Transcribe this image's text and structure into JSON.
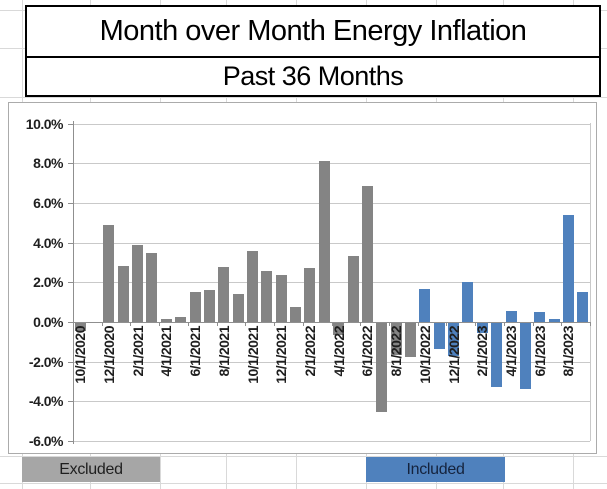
{
  "title": {
    "line1": "Month over Month Energy Inflation",
    "line2": "Past 36 Months"
  },
  "legend": {
    "excluded_label": "Excluded",
    "included_label": "Included"
  },
  "colors": {
    "excluded_bar": "#848484",
    "included_bar": "#4f81bd",
    "legend_excluded_bg": "#a6a6a6",
    "legend_included_bg": "#4f81bd",
    "gridline": "#c9c9c9",
    "axis": "#8f8f8f"
  },
  "chart_data": {
    "type": "bar",
    "title": "Month over Month Energy Inflation",
    "subtitle": "Past 36 Months",
    "xlabel": "",
    "ylabel": "",
    "ylim": [
      -6,
      10
    ],
    "grid": true,
    "legend_position": "bottom",
    "x_labels_every": 2,
    "ytick_percent": [
      10,
      8,
      6,
      4,
      2,
      0,
      -2,
      -4,
      -6
    ],
    "ytick_labels": [
      "10.0%",
      "8.0%",
      "6.0%",
      "4.0%",
      "2.0%",
      "0.0%",
      "-2.0%",
      "-4.0%",
      "-6.0%"
    ],
    "series": [
      {
        "name": "Excluded",
        "color": "#848484"
      },
      {
        "name": "Included",
        "color": "#4f81bd"
      }
    ],
    "points": [
      {
        "date": "10/1/2020",
        "value": -0.4,
        "series": "Excluded"
      },
      {
        "date": "11/1/2020",
        "value": 0.0,
        "series": "Excluded"
      },
      {
        "date": "12/1/2020",
        "value": 4.9,
        "series": "Excluded"
      },
      {
        "date": "1/1/2021",
        "value": 2.8,
        "series": "Excluded"
      },
      {
        "date": "2/1/2021",
        "value": 3.9,
        "series": "Excluded"
      },
      {
        "date": "3/1/2021",
        "value": 3.5,
        "series": "Excluded"
      },
      {
        "date": "4/1/2021",
        "value": 0.15,
        "series": "Excluded"
      },
      {
        "date": "5/1/2021",
        "value": 0.25,
        "series": "Excluded"
      },
      {
        "date": "6/1/2021",
        "value": 1.5,
        "series": "Excluded"
      },
      {
        "date": "7/1/2021",
        "value": 1.6,
        "series": "Excluded"
      },
      {
        "date": "8/1/2021",
        "value": 2.75,
        "series": "Excluded"
      },
      {
        "date": "9/1/2021",
        "value": 1.4,
        "series": "Excluded"
      },
      {
        "date": "10/1/2021",
        "value": 3.6,
        "series": "Excluded"
      },
      {
        "date": "11/1/2021",
        "value": 2.55,
        "series": "Excluded"
      },
      {
        "date": "12/1/2021",
        "value": 2.35,
        "series": "Excluded"
      },
      {
        "date": "1/1/2022",
        "value": 0.75,
        "series": "Excluded"
      },
      {
        "date": "2/1/2022",
        "value": 2.7,
        "series": "Excluded"
      },
      {
        "date": "3/1/2022",
        "value": 8.1,
        "series": "Excluded"
      },
      {
        "date": "4/1/2022",
        "value": -0.6,
        "series": "Excluded"
      },
      {
        "date": "5/1/2022",
        "value": 3.3,
        "series": "Excluded"
      },
      {
        "date": "6/1/2022",
        "value": 6.85,
        "series": "Excluded"
      },
      {
        "date": "7/1/2022",
        "value": -4.5,
        "series": "Excluded"
      },
      {
        "date": "8/1/2022",
        "value": -1.6,
        "series": "Excluded"
      },
      {
        "date": "9/1/2022",
        "value": -1.7,
        "series": "Excluded"
      },
      {
        "date": "10/1/2022",
        "value": 1.65,
        "series": "Included"
      },
      {
        "date": "11/1/2022",
        "value": -1.3,
        "series": "Included"
      },
      {
        "date": "12/1/2022",
        "value": -1.65,
        "series": "Included"
      },
      {
        "date": "1/1/2023",
        "value": 2.0,
        "series": "Included"
      },
      {
        "date": "2/1/2023",
        "value": -0.5,
        "series": "Included"
      },
      {
        "date": "3/1/2023",
        "value": -3.2,
        "series": "Included"
      },
      {
        "date": "4/1/2023",
        "value": 0.55,
        "series": "Included"
      },
      {
        "date": "5/1/2023",
        "value": -3.35,
        "series": "Included"
      },
      {
        "date": "6/1/2023",
        "value": 0.5,
        "series": "Included"
      },
      {
        "date": "7/1/2023",
        "value": 0.15,
        "series": "Included"
      },
      {
        "date": "8/1/2023",
        "value": 5.4,
        "series": "Included"
      },
      {
        "date": "9/1/2023",
        "value": 1.5,
        "series": "Included"
      }
    ]
  }
}
